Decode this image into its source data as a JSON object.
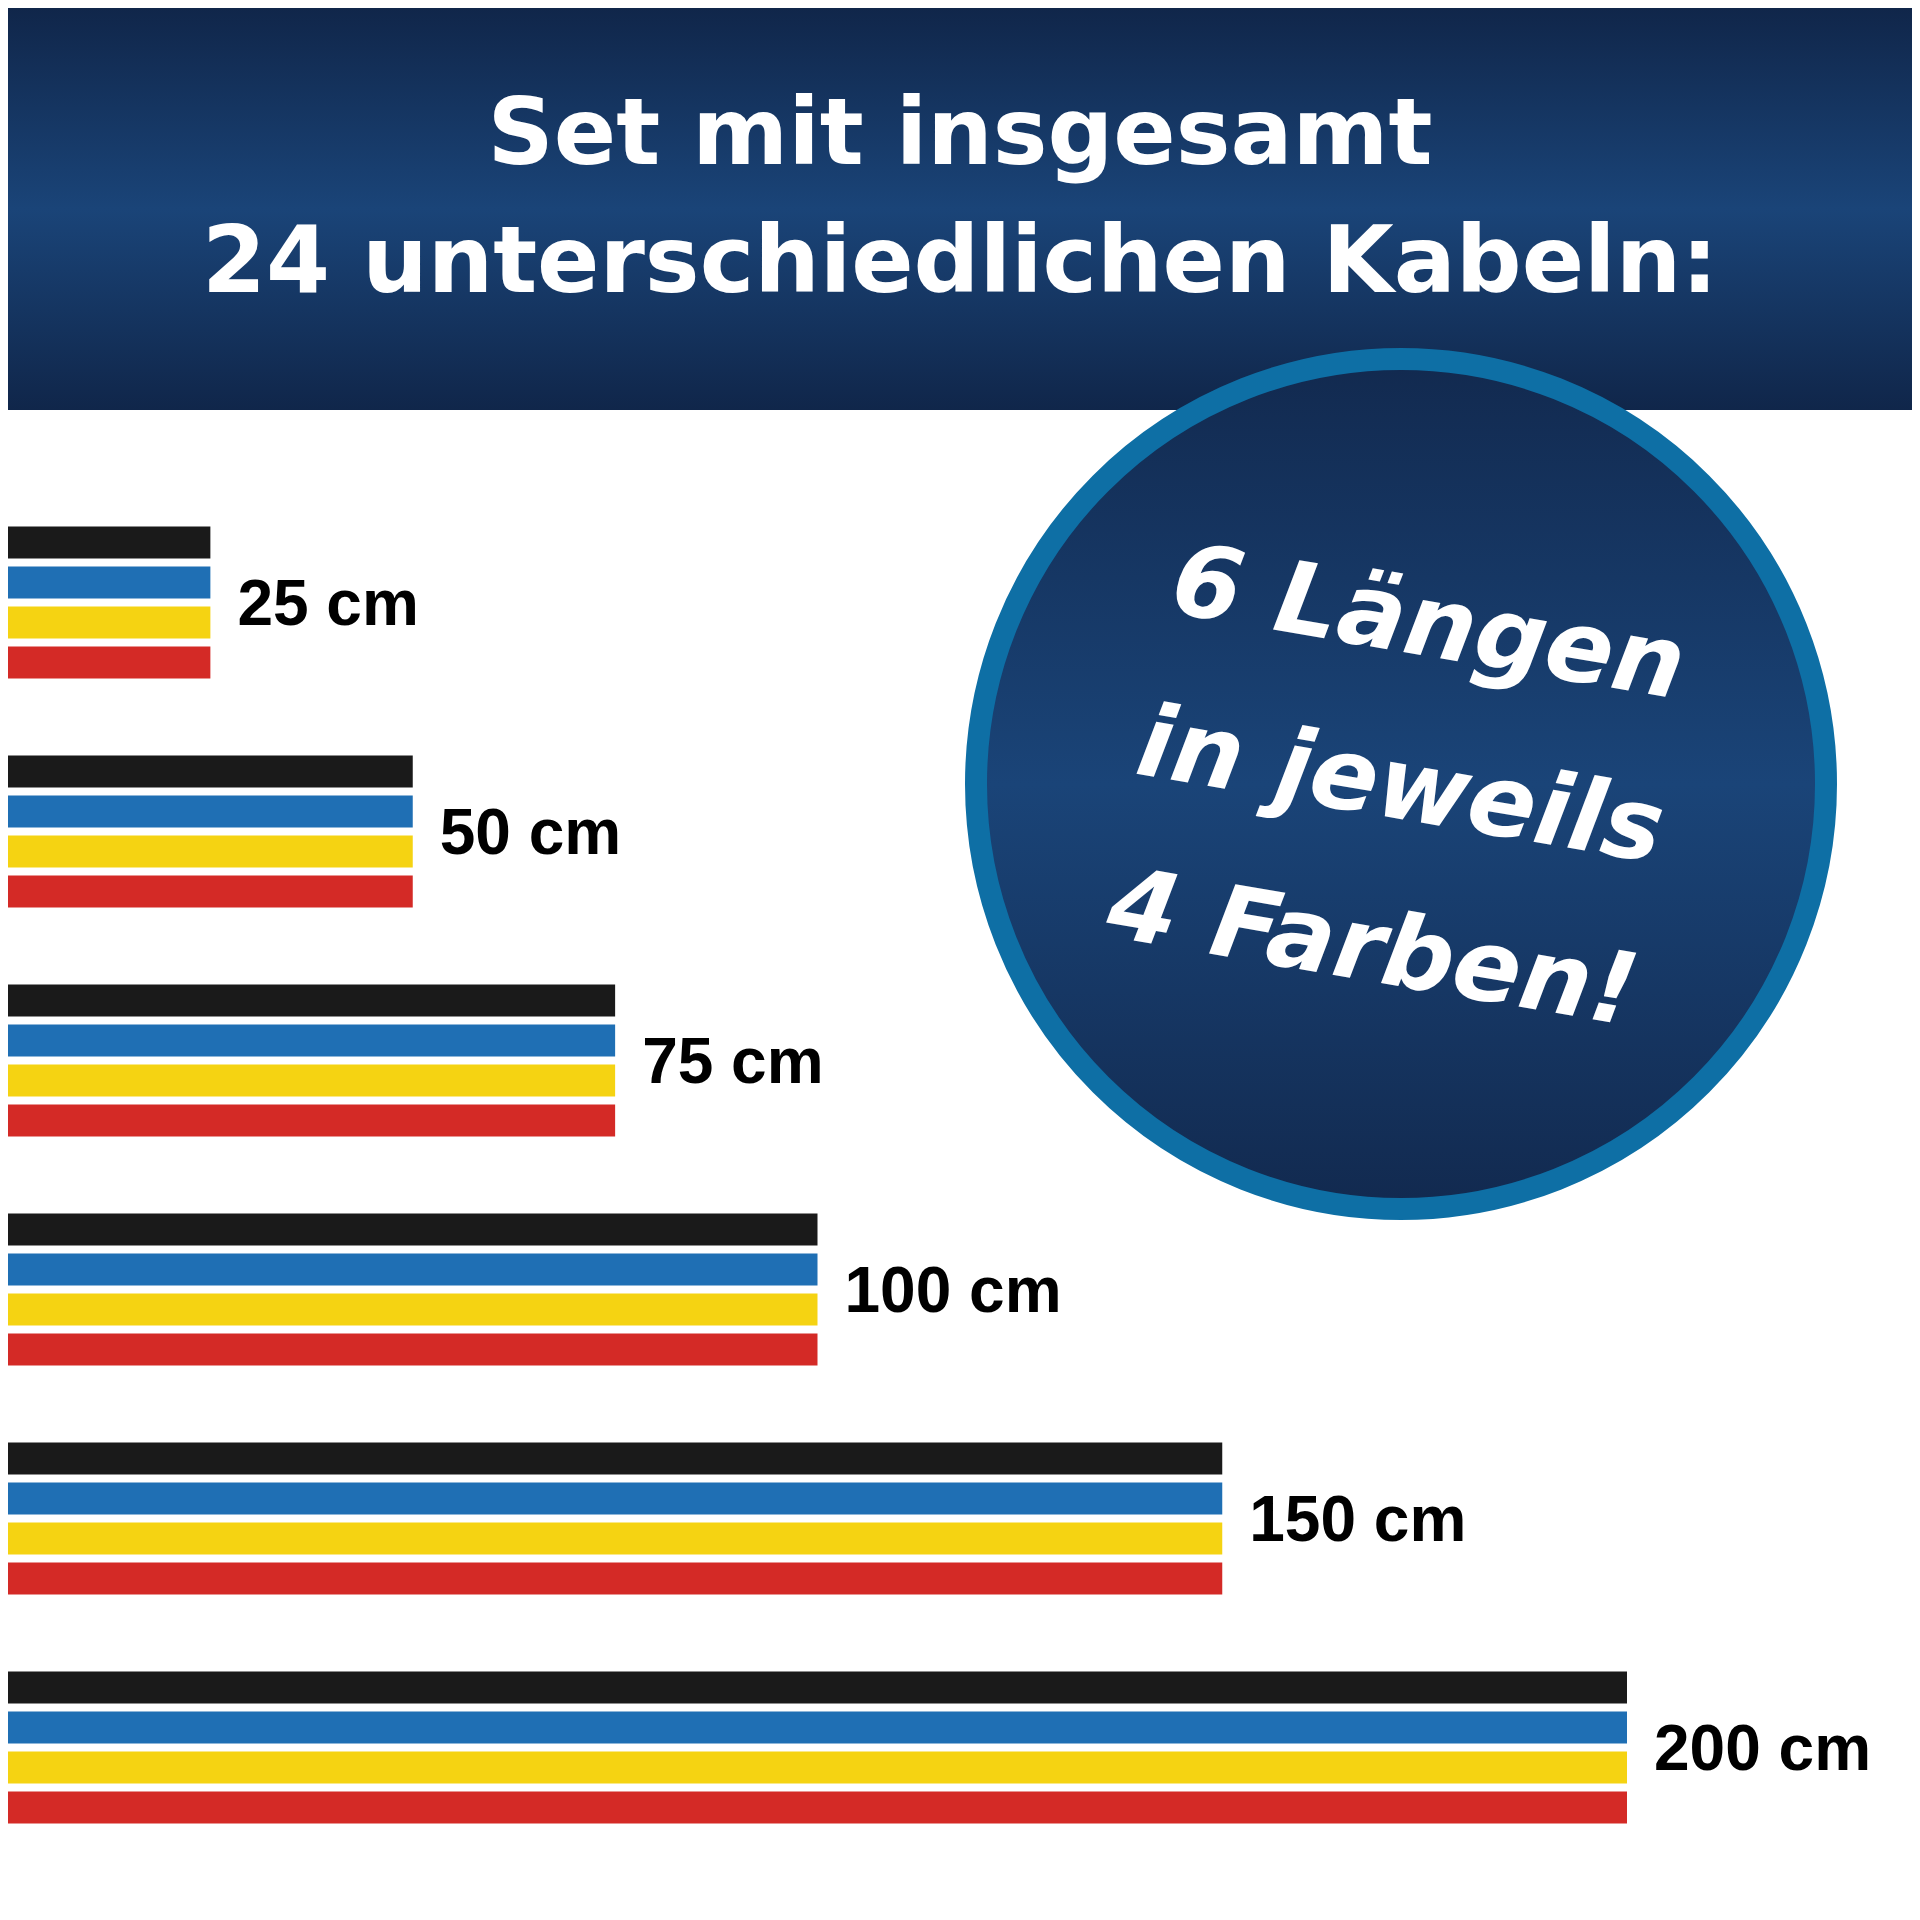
{
  "chart_data": {
    "type": "bar",
    "orientation": "horizontal",
    "title": "Set mit insgesamt\n24 unterschiedlichen Kabeln:",
    "annotations": [
      "6 Längen\nin jeweils\n4 Farben!"
    ],
    "categories": [
      null,
      null,
      null,
      null,
      null,
      null
    ],
    "series": [
      {
        "color": "#1a1a1a",
        "values": [
          25,
          50,
          75,
          100,
          150,
          200
        ]
      },
      {
        "color": "#1f6fb4",
        "values": [
          25,
          50,
          75,
          100,
          150,
          200
        ]
      },
      {
        "color": "#f5d312",
        "values": [
          25,
          50,
          75,
          100,
          150,
          200
        ],
        "value_labels": [
          "25 cm",
          "50 cm",
          "75 cm",
          "100 cm",
          "150 cm",
          "200 cm"
        ]
      },
      {
        "color": "#d42a26",
        "values": [
          25,
          50,
          75,
          100,
          150,
          200
        ]
      }
    ]
  }
}
